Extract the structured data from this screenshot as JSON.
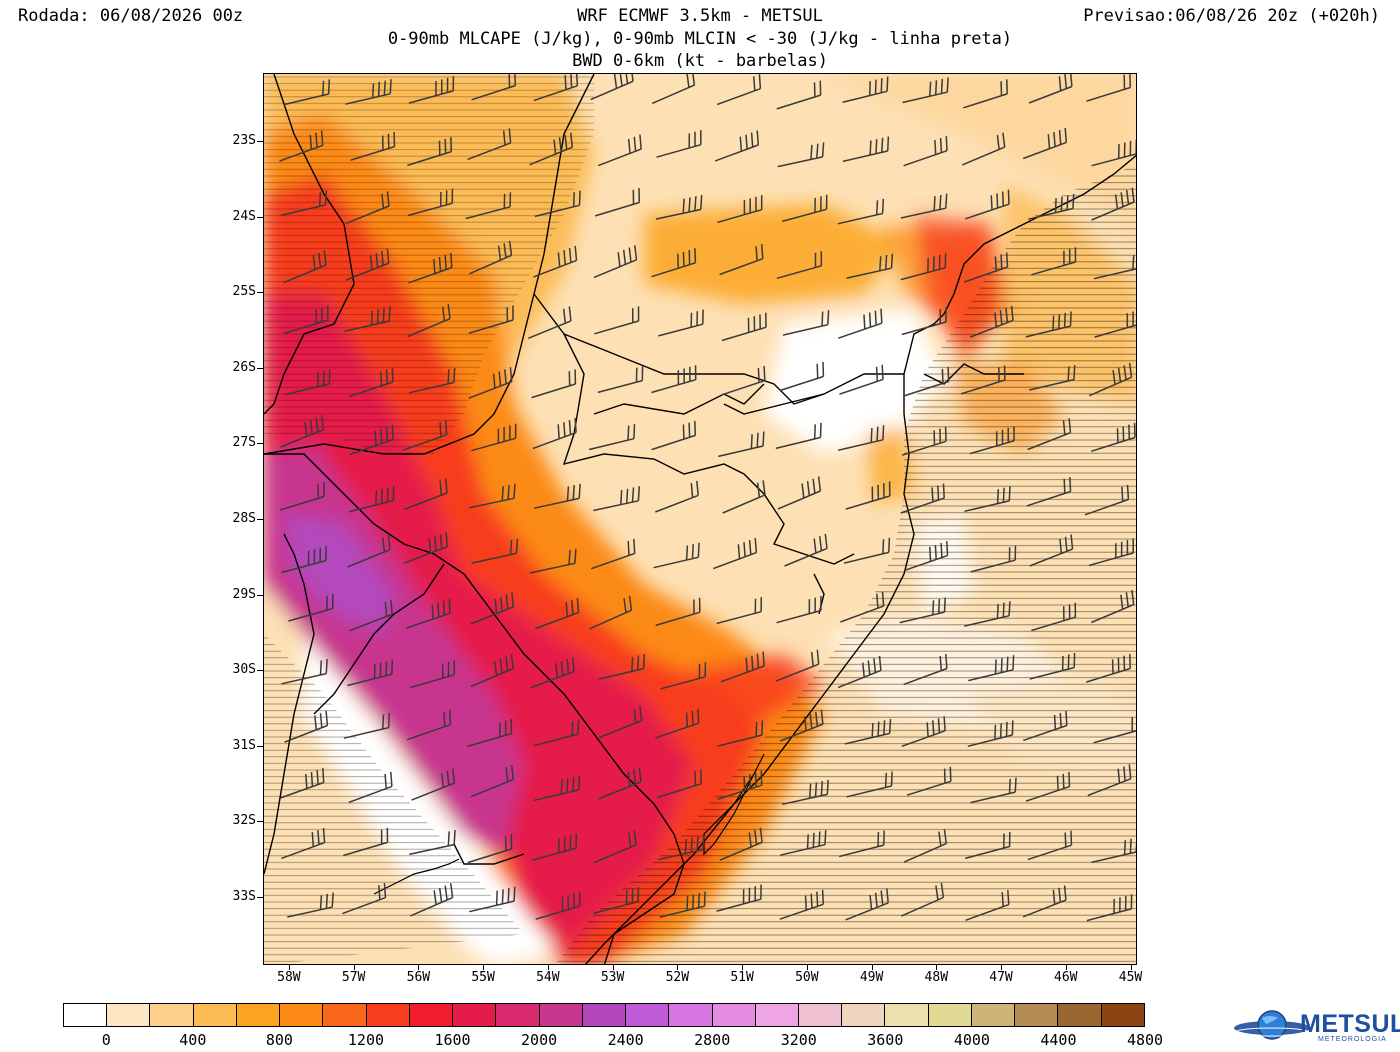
{
  "header": {
    "run_label": "Rodada: 06/08/2026 00z",
    "model_title": "WRF ECMWF 3.5km - METSUL",
    "fields_line": "0-90mb MLCAPE (J/kg), 0-90mb MLCIN < -30 (J/kg - linha preta)",
    "shear_line": "BWD 0-6km (kt - barbelas)",
    "forecast_label": "Previsao:06/08/26 20z (+020h)"
  },
  "map": {
    "lat_labels": [
      "23S",
      "24S",
      "25S",
      "26S",
      "27S",
      "28S",
      "29S",
      "30S",
      "31S",
      "32S",
      "33S"
    ],
    "lat_values": [
      -23,
      -24,
      -25,
      -26,
      -27,
      -28,
      -29,
      -30,
      -31,
      -32,
      -33
    ],
    "lon_labels": [
      "58W",
      "57W",
      "56W",
      "55W",
      "54W",
      "53W",
      "52W",
      "51W",
      "50W",
      "49W",
      "48W",
      "47W",
      "46W",
      "45W"
    ],
    "lon_values": [
      -58,
      -57,
      -56,
      -55,
      -54,
      -53,
      -52,
      -51,
      -50,
      -49,
      -48,
      -47,
      -46,
      -45
    ],
    "lat_range": [
      -33.9,
      -22.1
    ],
    "lon_range": [
      -58.4,
      -44.9
    ],
    "wind_barbs": "west-southwest",
    "cin_contours": "black lines (MLCIN < -30 J/kg)"
  },
  "colorbar": {
    "labels": [
      "0",
      "400",
      "800",
      "1200",
      "1600",
      "2000",
      "2400",
      "2800",
      "3200",
      "3600",
      "4000",
      "4400",
      "4800"
    ],
    "colors": [
      "#ffffff",
      "#fde6c2",
      "#fdd08c",
      "#fcbb55",
      "#fca420",
      "#fc8a14",
      "#f9671a",
      "#f83e1f",
      "#ef1d2e",
      "#e51c4a",
      "#d92a6f",
      "#c7358f",
      "#b348bd",
      "#c05ad6",
      "#d676e1",
      "#e48be2",
      "#efa5e4",
      "#f0bfd2",
      "#efd4c0",
      "#ece0ac",
      "#e1d994",
      "#cdb57a",
      "#b58b55",
      "#9b6731",
      "#8a4513"
    ]
  },
  "logo": {
    "name": "METSUL",
    "tagline": "METEOROLOGIA"
  }
}
